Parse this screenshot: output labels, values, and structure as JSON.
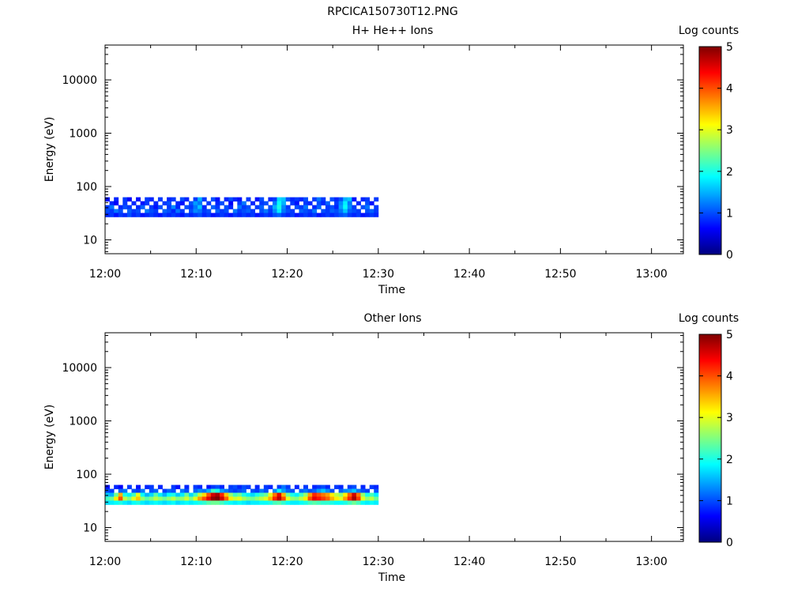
{
  "figure_title": "RPCICA150730T12.PNG",
  "colorscale": [
    "#00007f",
    "#0000ff",
    "#0080ff",
    "#00ffff",
    "#80ff80",
    "#ffff00",
    "#ff8000",
    "#ff0000",
    "#7f0000"
  ],
  "chart_data": [
    {
      "type": "heatmap",
      "title": "H+ He++ Ions",
      "xlabel": "Time",
      "ylabel": "Energy (eV)",
      "x_ticks": [
        "12:00",
        "12:10",
        "12:20",
        "12:30",
        "12:40",
        "12:50",
        "13:00"
      ],
      "xlim_minutes": [
        0,
        63.5
      ],
      "y_scale": "log",
      "ylim": [
        5.5,
        45000
      ],
      "y_ticks": [
        10,
        100,
        1000,
        10000
      ],
      "y_tick_labels": [
        "10",
        "100",
        "1000",
        "10000"
      ],
      "colorbar": {
        "label": "Log counts",
        "range": [
          0,
          5
        ],
        "ticks": [
          "0",
          "1",
          "2",
          "3",
          "4",
          "5"
        ]
      },
      "data_window": {
        "start": "12:00",
        "end": "12:30",
        "energy_min_eV": 27,
        "energy_max_eV": 63
      },
      "energy_rows_eV": [
        59,
        51,
        44,
        38,
        32
      ],
      "rows_log_counts": [
        [
          0.7,
          null,
          0.8,
          null,
          0.9,
          0.6,
          null,
          0.7,
          null,
          0.9,
          0.8,
          null,
          0.9,
          null,
          0.8,
          0.9,
          null,
          1.0,
          0.8,
          null,
          0.9,
          1.5,
          0.9,
          null,
          1.0,
          0.7,
          null,
          0.8,
          1.0,
          0.8,
          0.7,
          null,
          0.9,
          null,
          0.7,
          1.0,
          null,
          0.8,
          0.9,
          1.7,
          1.6,
          1.0,
          0.8,
          0.9,
          0.8,
          1.0,
          null,
          0.9,
          1.2,
          0.9,
          null,
          1.0,
          0.8,
          1.0,
          1.5,
          1.6,
          0.7,
          null,
          0.8,
          0.9,
          null,
          0.9
        ],
        [
          null,
          0.8,
          0.6,
          null,
          0.9,
          null,
          0.8,
          null,
          0.7,
          0.9,
          null,
          0.8,
          null,
          0.9,
          1.0,
          null,
          0.8,
          0.7,
          null,
          1.0,
          1.4,
          1.2,
          null,
          0.9,
          null,
          0.8,
          1.0,
          null,
          0.6,
          null,
          0.9,
          1.2,
          null,
          0.8,
          null,
          0.9,
          1.0,
          null,
          1.2,
          1.9,
          1.5,
          null,
          0.9,
          0.7,
          null,
          0.9,
          0.8,
          null,
          1.0,
          0.8,
          1.1,
          null,
          0.9,
          1.3,
          1.8,
          1.2,
          null,
          0.8,
          null,
          1.0,
          0.7,
          null
        ],
        [
          0.9,
          1.2,
          null,
          0.8,
          1.0,
          0.9,
          null,
          0.8,
          1.1,
          null,
          0.9,
          0.7,
          1.0,
          null,
          0.9,
          1.3,
          0.8,
          null,
          1.0,
          0.9,
          1.2,
          1.6,
          0.8,
          null,
          1.1,
          0.9,
          null,
          1.0,
          0.8,
          null,
          1.2,
          0.9,
          1.0,
          null,
          0.9,
          1.1,
          null,
          1.0,
          1.5,
          2.0,
          1.3,
          0.9,
          null,
          1.0,
          0.9,
          1.2,
          null,
          0.8,
          1.1,
          null,
          0.9,
          1.0,
          0.8,
          1.4,
          1.9,
          1.3,
          0.9,
          null,
          1.0,
          1.2,
          null,
          0.9
        ],
        [
          1.0,
          0.9,
          1.2,
          1.0,
          null,
          1.1,
          0.9,
          1.0,
          null,
          1.2,
          1.0,
          0.9,
          null,
          1.1,
          1.0,
          0.8,
          1.2,
          0.9,
          null,
          1.0,
          1.3,
          1.2,
          0.9,
          1.0,
          null,
          1.1,
          0.9,
          1.0,
          null,
          1.2,
          0.9,
          1.0,
          1.1,
          0.9,
          null,
          1.0,
          1.2,
          0.9,
          1.3,
          1.8,
          1.2,
          1.0,
          0.9,
          null,
          1.1,
          1.0,
          0.9,
          1.2,
          null,
          1.0,
          0.9,
          1.1,
          1.0,
          1.2,
          1.6,
          1.1,
          1.0,
          0.9,
          null,
          1.0,
          1.1,
          0.9
        ],
        [
          0.8,
          0.9,
          0.7,
          0.9,
          0.8,
          1.0,
          0.8,
          0.9,
          0.7,
          0.8,
          0.9,
          0.8,
          0.7,
          0.9,
          0.8,
          0.9,
          0.8,
          0.7,
          0.9,
          0.8,
          0.9,
          1.0,
          0.8,
          0.9,
          0.7,
          0.8,
          0.9,
          0.8,
          0.7,
          0.9,
          0.8,
          0.9,
          0.8,
          0.9,
          0.7,
          0.8,
          0.9,
          0.8,
          1.0,
          1.1,
          0.9,
          0.8,
          0.9,
          0.7,
          0.8,
          0.9,
          0.8,
          0.9,
          0.7,
          0.8,
          0.9,
          0.8,
          0.9,
          1.0,
          1.1,
          0.9,
          0.8,
          0.9,
          0.7,
          0.8,
          0.9,
          0.8
        ]
      ]
    },
    {
      "type": "heatmap",
      "title": "Other Ions",
      "xlabel": "Time",
      "ylabel": "Energy (eV)",
      "x_ticks": [
        "12:00",
        "12:10",
        "12:20",
        "12:30",
        "12:40",
        "12:50",
        "13:00"
      ],
      "xlim_minutes": [
        0,
        63.5
      ],
      "y_scale": "log",
      "ylim": [
        5.5,
        45000
      ],
      "y_ticks": [
        10,
        100,
        1000,
        10000
      ],
      "y_tick_labels": [
        "10",
        "100",
        "1000",
        "10000"
      ],
      "colorbar": {
        "label": "Log counts",
        "range": [
          0,
          5
        ],
        "ticks": [
          "0",
          "1",
          "2",
          "3",
          "4",
          "5"
        ]
      },
      "data_window": {
        "start": "12:00",
        "end": "12:30",
        "energy_min_eV": 27,
        "energy_max_eV": 63
      },
      "energy_rows_eV": [
        59,
        51,
        44,
        38,
        32
      ],
      "rows_log_counts": [
        [
          0.7,
          null,
          0.8,
          0.6,
          null,
          0.9,
          null,
          0.7,
          null,
          0.8,
          0.9,
          null,
          0.8,
          null,
          null,
          0.9,
          0.7,
          null,
          0.8,
          null,
          0.9,
          0.8,
          null,
          0.7,
          0.9,
          1.0,
          0.8,
          null,
          0.9,
          1.0,
          0.8,
          1.0,
          0.9,
          null,
          0.8,
          null,
          0.9,
          0.8,
          null,
          0.9,
          1.2,
          0.9,
          null,
          0.8,
          null,
          0.9,
          null,
          0.8,
          0.9,
          1.0,
          0.8,
          null,
          0.9,
          0.8,
          null,
          0.9,
          1.0,
          null,
          0.8,
          null,
          0.9,
          0.8
        ],
        [
          1.0,
          0.9,
          null,
          1.1,
          1.2,
          null,
          1.0,
          0.9,
          1.2,
          null,
          1.0,
          1.1,
          null,
          0.9,
          1.1,
          1.0,
          null,
          1.2,
          1.0,
          null,
          1.1,
          1.3,
          1.2,
          1.5,
          2.2,
          2.0,
          1.4,
          1.2,
          1.0,
          0.9,
          1.0,
          1.1,
          null,
          1.0,
          0.9,
          1.2,
          1.0,
          null,
          1.3,
          1.9,
          1.4,
          1.1,
          1.0,
          null,
          1.1,
          1.2,
          1.0,
          1.1,
          1.4,
          1.6,
          1.3,
          1.0,
          null,
          1.1,
          1.3,
          1.4,
          1.6,
          1.2,
          1.0,
          0.9,
          null,
          1.0
        ],
        [
          1.6,
          1.5,
          2.4,
          3.5,
          2.0,
          1.8,
          2.2,
          3.0,
          1.9,
          1.5,
          1.7,
          2.3,
          1.8,
          1.5,
          1.9,
          2.0,
          1.6,
          1.8,
          2.4,
          1.7,
          2.2,
          2.8,
          3.3,
          4.0,
          4.6,
          4.8,
          4.2,
          3.4,
          2.6,
          2.2,
          2.4,
          2.0,
          1.8,
          1.7,
          2.0,
          2.2,
          2.4,
          3.0,
          3.8,
          4.5,
          3.5,
          2.4,
          2.0,
          1.8,
          2.2,
          2.6,
          3.6,
          4.2,
          4.0,
          3.8,
          3.6,
          3.2,
          2.8,
          2.6,
          3.2,
          3.9,
          4.6,
          3.8,
          2.6,
          2.0,
          2.2,
          1.8
        ],
        [
          2.2,
          2.4,
          3.2,
          4.0,
          2.8,
          2.5,
          3.0,
          3.4,
          2.6,
          2.3,
          2.5,
          2.8,
          2.6,
          2.4,
          2.6,
          2.8,
          2.5,
          2.6,
          2.9,
          2.5,
          3.0,
          3.6,
          4.0,
          4.5,
          4.9,
          5.0,
          4.6,
          3.9,
          3.2,
          2.9,
          3.0,
          2.7,
          2.5,
          2.4,
          2.6,
          2.8,
          3.0,
          3.5,
          4.2,
          4.7,
          4.0,
          3.0,
          2.6,
          2.5,
          2.8,
          3.2,
          4.0,
          4.5,
          4.3,
          4.1,
          3.9,
          3.5,
          3.2,
          3.0,
          3.6,
          4.2,
          4.8,
          4.1,
          3.0,
          2.6,
          2.8,
          2.4
        ],
        [
          1.7,
          1.8,
          1.9,
          2.0,
          1.8,
          1.7,
          1.9,
          2.0,
          1.8,
          1.7,
          1.8,
          1.9,
          1.8,
          1.7,
          1.8,
          1.9,
          1.7,
          1.8,
          1.9,
          1.8,
          1.9,
          2.0,
          2.1,
          2.3,
          2.4,
          2.4,
          2.2,
          2.0,
          1.9,
          1.8,
          1.9,
          1.8,
          1.7,
          1.8,
          1.8,
          1.9,
          1.9,
          2.0,
          2.2,
          2.3,
          2.1,
          1.9,
          1.8,
          1.8,
          1.9,
          2.0,
          2.2,
          2.3,
          2.2,
          2.1,
          2.1,
          2.0,
          1.9,
          1.9,
          2.0,
          2.2,
          2.4,
          2.2,
          1.9,
          1.8,
          1.9,
          1.8
        ]
      ]
    }
  ]
}
